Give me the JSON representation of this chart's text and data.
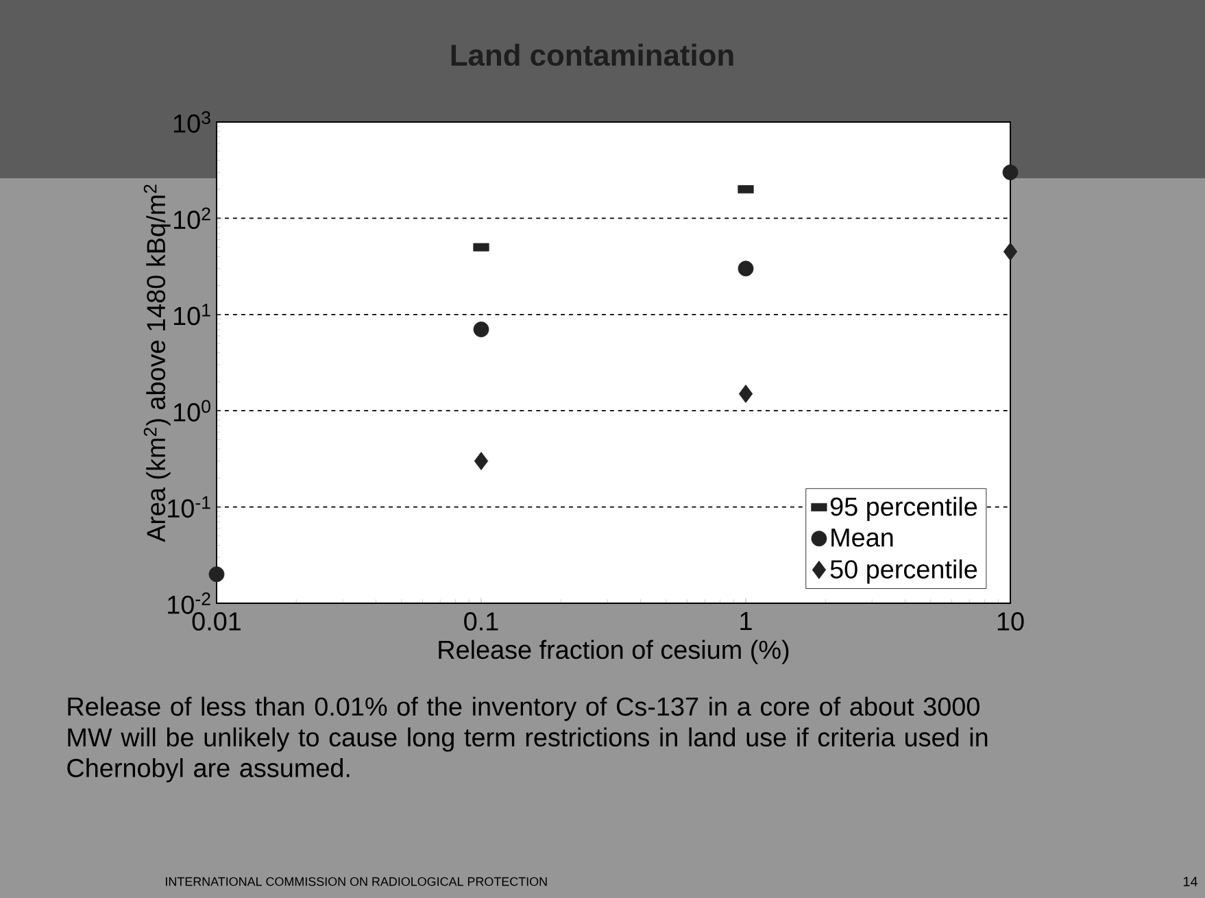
{
  "chart_data": {
    "type": "scatter",
    "title": "Land contamination",
    "xlabel": "Release fraction of cesium (%)",
    "ylabel": "Area (km$^{2}$) above 1480 kBq/m$^{2}$",
    "log": "xy",
    "xlim": [
      0.01,
      10
    ],
    "ylim": [
      0.01,
      1000
    ],
    "xticks": [
      0.01,
      0.1,
      1,
      10
    ],
    "yticks": [
      {
        "value": 0.01,
        "label": "10$^{-2}$"
      },
      {
        "value": 0.1,
        "label": "10$^{-1}$"
      },
      {
        "value": 1,
        "label": "10$^{0}$"
      },
      {
        "value": 10,
        "label": "10$^{1}$"
      },
      {
        "value": 100,
        "label": "10$^{2}$"
      },
      {
        "value": 1000,
        "label": "10$^{3}$"
      }
    ],
    "grid": "y",
    "legend": "bottom right",
    "series": [
      {
        "name": "95 percentile",
        "color": "#222222",
        "marker": "square",
        "x": [
          0.1,
          1
        ],
        "values": [
          50,
          200
        ]
      },
      {
        "name": "Mean",
        "color": "#222222",
        "marker": "circle",
        "x": [
          0.01,
          0.1,
          1,
          10
        ],
        "values": [
          0.02,
          7,
          30,
          300
        ]
      },
      {
        "name": "50 percentile",
        "color": "#222222",
        "marker": "diamond",
        "x": [
          0.1,
          1,
          10
        ],
        "values": [
          0.3,
          1.5,
          45
        ]
      }
    ],
    "annotations": [
      "Release of less than 0.01% of the inventory of Cs-137 in a core of about 3000 MW will be unlikely to cause long term restrictions in land use if criteria used in Chernobyl are assumed.",
      "INTERNATIONAL COMMISSION ON RADIOLOGICAL PROTECTION",
      "14"
    ]
  }
}
